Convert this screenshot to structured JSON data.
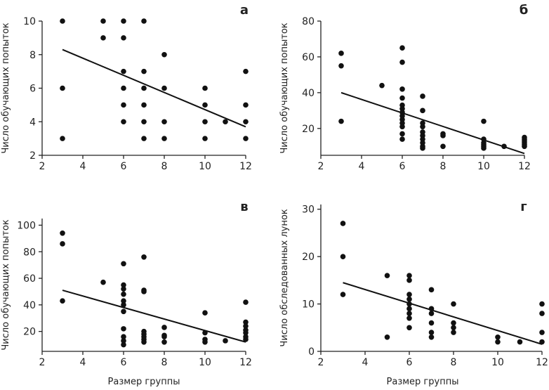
{
  "chart_data": [
    {
      "type": "scatter",
      "panel_label": "а",
      "xlabel": "",
      "ylabel": "Число обучающих попыток",
      "xlim": [
        2,
        12
      ],
      "ylim": [
        2,
        10
      ],
      "xticks": [
        2,
        4,
        6,
        8,
        10,
        12
      ],
      "yticks": [
        2,
        4,
        6,
        8,
        10
      ],
      "points": [
        {
          "x": 3,
          "y": 10
        },
        {
          "x": 3,
          "y": 6
        },
        {
          "x": 3,
          "y": 3
        },
        {
          "x": 5,
          "y": 10
        },
        {
          "x": 5,
          "y": 9
        },
        {
          "x": 6,
          "y": 10
        },
        {
          "x": 6,
          "y": 9
        },
        {
          "x": 6,
          "y": 7
        },
        {
          "x": 6,
          "y": 6
        },
        {
          "x": 6,
          "y": 5
        },
        {
          "x": 6,
          "y": 4
        },
        {
          "x": 7,
          "y": 10
        },
        {
          "x": 7,
          "y": 7
        },
        {
          "x": 7,
          "y": 6
        },
        {
          "x": 7,
          "y": 5
        },
        {
          "x": 7,
          "y": 4
        },
        {
          "x": 7,
          "y": 3
        },
        {
          "x": 8,
          "y": 8
        },
        {
          "x": 8,
          "y": 6
        },
        {
          "x": 8,
          "y": 4
        },
        {
          "x": 8,
          "y": 3
        },
        {
          "x": 10,
          "y": 6
        },
        {
          "x": 10,
          "y": 5
        },
        {
          "x": 10,
          "y": 4
        },
        {
          "x": 10,
          "y": 3
        },
        {
          "x": 11,
          "y": 4
        },
        {
          "x": 12,
          "y": 7
        },
        {
          "x": 12,
          "y": 5
        },
        {
          "x": 12,
          "y": 4
        },
        {
          "x": 12,
          "y": 3
        }
      ],
      "trendline": {
        "x": [
          3,
          12
        ],
        "y": [
          8.3,
          3.7
        ]
      }
    },
    {
      "type": "scatter",
      "panel_label": "б",
      "xlabel": "",
      "ylabel": "Число обучающих попыток",
      "xlim": [
        2,
        12
      ],
      "ylim": [
        5,
        80
      ],
      "xticks": [
        2,
        4,
        6,
        8,
        10,
        12
      ],
      "yticks": [
        20,
        40,
        60,
        80
      ],
      "points": [
        {
          "x": 3,
          "y": 62
        },
        {
          "x": 3,
          "y": 55
        },
        {
          "x": 3,
          "y": 24
        },
        {
          "x": 5,
          "y": 44
        },
        {
          "x": 6,
          "y": 65
        },
        {
          "x": 6,
          "y": 57
        },
        {
          "x": 6,
          "y": 42
        },
        {
          "x": 6,
          "y": 37
        },
        {
          "x": 6,
          "y": 33
        },
        {
          "x": 6,
          "y": 31
        },
        {
          "x": 6,
          "y": 29
        },
        {
          "x": 6,
          "y": 27
        },
        {
          "x": 6,
          "y": 25
        },
        {
          "x": 6,
          "y": 23
        },
        {
          "x": 6,
          "y": 21
        },
        {
          "x": 6,
          "y": 17
        },
        {
          "x": 6,
          "y": 14
        },
        {
          "x": 7,
          "y": 38
        },
        {
          "x": 7,
          "y": 30
        },
        {
          "x": 7,
          "y": 23
        },
        {
          "x": 7,
          "y": 21
        },
        {
          "x": 7,
          "y": 18
        },
        {
          "x": 7,
          "y": 16
        },
        {
          "x": 7,
          "y": 14
        },
        {
          "x": 7,
          "y": 12
        },
        {
          "x": 7,
          "y": 10
        },
        {
          "x": 7,
          "y": 9
        },
        {
          "x": 8,
          "y": 17
        },
        {
          "x": 8,
          "y": 16
        },
        {
          "x": 8,
          "y": 10
        },
        {
          "x": 10,
          "y": 24
        },
        {
          "x": 10,
          "y": 14
        },
        {
          "x": 10,
          "y": 12
        },
        {
          "x": 10,
          "y": 11
        },
        {
          "x": 10,
          "y": 10
        },
        {
          "x": 10,
          "y": 9
        },
        {
          "x": 11,
          "y": 10
        },
        {
          "x": 12,
          "y": 15
        },
        {
          "x": 12,
          "y": 14
        },
        {
          "x": 12,
          "y": 13
        },
        {
          "x": 12,
          "y": 12
        },
        {
          "x": 12,
          "y": 11
        },
        {
          "x": 12,
          "y": 10
        }
      ],
      "trendline": {
        "x": [
          3,
          12
        ],
        "y": [
          40,
          6
        ]
      }
    },
    {
      "type": "scatter",
      "panel_label": "в",
      "xlabel": "Размер группы",
      "ylabel": "Число обучающих попыток",
      "xlim": [
        2,
        12
      ],
      "ylim": [
        5,
        105
      ],
      "xticks": [
        2,
        4,
        6,
        8,
        10,
        12
      ],
      "yticks": [
        20,
        40,
        60,
        80,
        100
      ],
      "points": [
        {
          "x": 3,
          "y": 94
        },
        {
          "x": 3,
          "y": 86
        },
        {
          "x": 3,
          "y": 43
        },
        {
          "x": 5,
          "y": 57
        },
        {
          "x": 6,
          "y": 71
        },
        {
          "x": 6,
          "y": 55
        },
        {
          "x": 6,
          "y": 52
        },
        {
          "x": 6,
          "y": 48
        },
        {
          "x": 6,
          "y": 43
        },
        {
          "x": 6,
          "y": 40
        },
        {
          "x": 6,
          "y": 35
        },
        {
          "x": 6,
          "y": 22
        },
        {
          "x": 6,
          "y": 16
        },
        {
          "x": 6,
          "y": 13
        },
        {
          "x": 6,
          "y": 10
        },
        {
          "x": 7,
          "y": 76
        },
        {
          "x": 7,
          "y": 51
        },
        {
          "x": 7,
          "y": 50
        },
        {
          "x": 7,
          "y": 20
        },
        {
          "x": 7,
          "y": 18
        },
        {
          "x": 7,
          "y": 16
        },
        {
          "x": 7,
          "y": 14
        },
        {
          "x": 7,
          "y": 12
        },
        {
          "x": 8,
          "y": 23
        },
        {
          "x": 8,
          "y": 17
        },
        {
          "x": 8,
          "y": 16
        },
        {
          "x": 8,
          "y": 12
        },
        {
          "x": 10,
          "y": 34
        },
        {
          "x": 10,
          "y": 19
        },
        {
          "x": 10,
          "y": 14
        },
        {
          "x": 10,
          "y": 12
        },
        {
          "x": 11,
          "y": 13
        },
        {
          "x": 12,
          "y": 42
        },
        {
          "x": 12,
          "y": 27
        },
        {
          "x": 12,
          "y": 24
        },
        {
          "x": 12,
          "y": 21
        },
        {
          "x": 12,
          "y": 19
        },
        {
          "x": 12,
          "y": 16
        },
        {
          "x": 12,
          "y": 14
        }
      ],
      "trendline": {
        "x": [
          3,
          12
        ],
        "y": [
          51,
          12
        ]
      }
    },
    {
      "type": "scatter",
      "panel_label": "г",
      "xlabel": "Размер группы",
      "ylabel": "Число обследованных лунок",
      "xlim": [
        2,
        12
      ],
      "ylim": [
        0,
        31
      ],
      "xticks": [
        2,
        4,
        6,
        8,
        10,
        12
      ],
      "yticks": [
        0,
        10,
        20,
        30
      ],
      "points": [
        {
          "x": 3,
          "y": 27
        },
        {
          "x": 3,
          "y": 20
        },
        {
          "x": 3,
          "y": 12
        },
        {
          "x": 5,
          "y": 16
        },
        {
          "x": 5,
          "y": 3
        },
        {
          "x": 6,
          "y": 16
        },
        {
          "x": 6,
          "y": 15
        },
        {
          "x": 6,
          "y": 12
        },
        {
          "x": 6,
          "y": 11
        },
        {
          "x": 6,
          "y": 10
        },
        {
          "x": 6,
          "y": 9
        },
        {
          "x": 6,
          "y": 8
        },
        {
          "x": 6,
          "y": 7
        },
        {
          "x": 6,
          "y": 5
        },
        {
          "x": 7,
          "y": 13
        },
        {
          "x": 7,
          "y": 9
        },
        {
          "x": 7,
          "y": 8
        },
        {
          "x": 7,
          "y": 6
        },
        {
          "x": 7,
          "y": 4
        },
        {
          "x": 7,
          "y": 3
        },
        {
          "x": 8,
          "y": 10
        },
        {
          "x": 8,
          "y": 6
        },
        {
          "x": 8,
          "y": 5
        },
        {
          "x": 8,
          "y": 4
        },
        {
          "x": 10,
          "y": 3
        },
        {
          "x": 10,
          "y": 2
        },
        {
          "x": 11,
          "y": 2
        },
        {
          "x": 12,
          "y": 10
        },
        {
          "x": 12,
          "y": 8
        },
        {
          "x": 12,
          "y": 4
        },
        {
          "x": 12,
          "y": 2
        }
      ],
      "trendline": {
        "x": [
          3,
          12
        ],
        "y": [
          14.5,
          1.5
        ]
      }
    }
  ]
}
